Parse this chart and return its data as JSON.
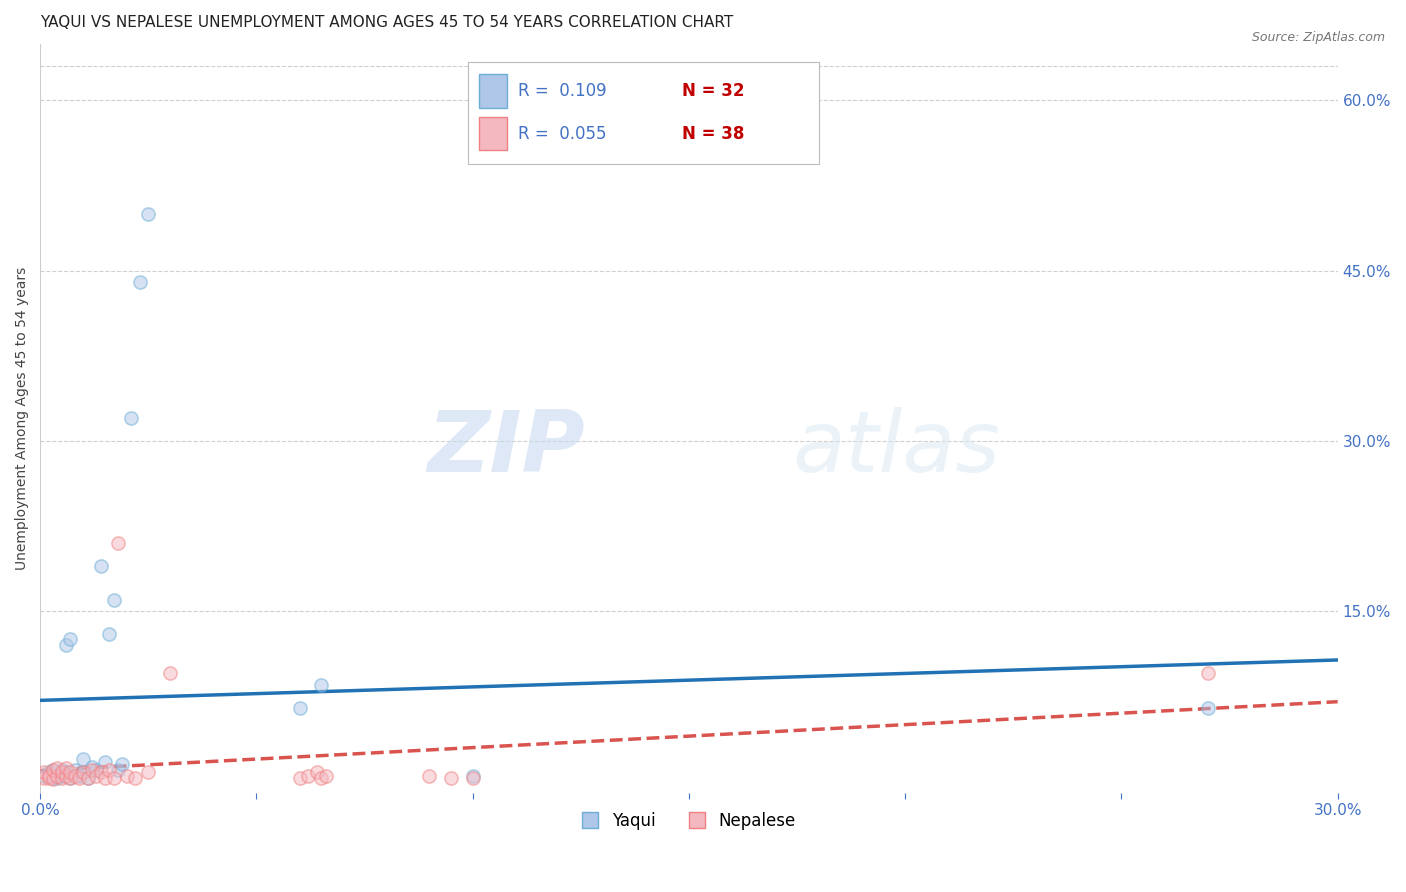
{
  "title": "YAQUI VS NEPALESE UNEMPLOYMENT AMONG AGES 45 TO 54 YEARS CORRELATION CHART",
  "source": "Source: ZipAtlas.com",
  "ylabel": "Unemployment Among Ages 45 to 54 years",
  "xlim": [
    0.0,
    0.3
  ],
  "ylim": [
    -0.01,
    0.65
  ],
  "yticks_right": [
    0.15,
    0.3,
    0.45,
    0.6
  ],
  "background_color": "#ffffff",
  "watermark_zip": "ZIP",
  "watermark_atlas": "atlas",
  "yaqui_color": "#aec6e8",
  "nepalese_color": "#f4b8c1",
  "yaqui_edge_color": "#6baed6",
  "nepalese_edge_color": "#f08080",
  "yaqui_line_color": "#2171b5",
  "nepalese_line_color": "#d9534f",
  "legend_yaqui_R": "0.109",
  "legend_yaqui_N": "32",
  "legend_nepalese_R": "0.055",
  "legend_nepalese_N": "38",
  "yaqui_x": [
    0.001,
    0.002,
    0.003,
    0.003,
    0.004,
    0.004,
    0.005,
    0.005,
    0.006,
    0.006,
    0.007,
    0.007,
    0.008,
    0.009,
    0.01,
    0.01,
    0.011,
    0.012,
    0.013,
    0.014,
    0.015,
    0.016,
    0.017,
    0.018,
    0.019,
    0.021,
    0.023,
    0.025,
    0.06,
    0.065,
    0.1,
    0.27
  ],
  "yaqui_y": [
    0.005,
    0.008,
    0.003,
    0.01,
    0.003,
    0.005,
    0.01,
    0.005,
    0.008,
    0.12,
    0.003,
    0.125,
    0.01,
    0.005,
    0.008,
    0.02,
    0.003,
    0.013,
    0.01,
    0.19,
    0.017,
    0.13,
    0.16,
    0.01,
    0.015,
    0.32,
    0.44,
    0.5,
    0.065,
    0.085,
    0.005,
    0.065
  ],
  "nepalese_x": [
    0.001,
    0.001,
    0.002,
    0.002,
    0.003,
    0.003,
    0.004,
    0.004,
    0.005,
    0.005,
    0.006,
    0.006,
    0.007,
    0.007,
    0.008,
    0.009,
    0.01,
    0.011,
    0.012,
    0.013,
    0.014,
    0.015,
    0.016,
    0.017,
    0.018,
    0.02,
    0.022,
    0.025,
    0.03,
    0.06,
    0.062,
    0.064,
    0.065,
    0.066,
    0.09,
    0.095,
    0.1,
    0.27
  ],
  "nepalese_y": [
    0.003,
    0.008,
    0.003,
    0.005,
    0.002,
    0.01,
    0.005,
    0.012,
    0.003,
    0.008,
    0.005,
    0.012,
    0.003,
    0.008,
    0.005,
    0.003,
    0.008,
    0.003,
    0.01,
    0.005,
    0.008,
    0.003,
    0.01,
    0.003,
    0.21,
    0.005,
    0.003,
    0.008,
    0.095,
    0.003,
    0.005,
    0.008,
    0.003,
    0.005,
    0.005,
    0.003,
    0.003,
    0.095
  ],
  "title_fontsize": 11,
  "axis_label_fontsize": 10,
  "tick_fontsize": 11,
  "legend_fontsize": 12,
  "marker_size": 90,
  "marker_alpha": 0.5,
  "line_width": 2.5
}
